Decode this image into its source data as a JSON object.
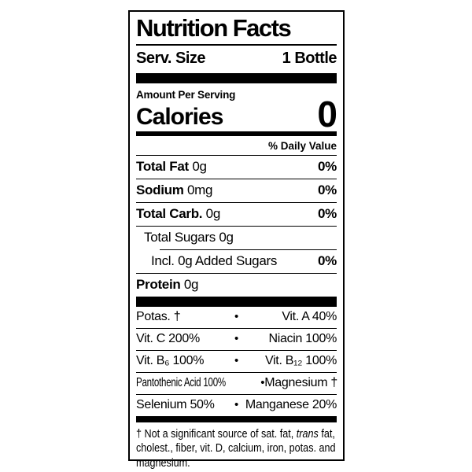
{
  "label": {
    "title": "Nutrition Facts",
    "serving": {
      "label": "Serv. Size",
      "value": "1 Bottle"
    },
    "amount_per_serving": "Amount Per Serving",
    "calories": {
      "label": "Calories",
      "value": "0"
    },
    "daily_value_header": "% Daily Value",
    "nutrient_rows": [
      {
        "name": "Total Fat",
        "amount": "0g",
        "dv": "0%"
      },
      {
        "name": "Sodium",
        "amount": "0mg",
        "dv": "0%"
      },
      {
        "name": "Total Carb.",
        "amount": "0g",
        "dv": "0%"
      },
      {
        "name": "Total Sugars",
        "amount": "0g",
        "dv": ""
      },
      {
        "name": "Incl. 0g Added Sugars",
        "amount": "",
        "dv": "0%"
      },
      {
        "name": "Protein",
        "amount": "0g",
        "dv": ""
      }
    ],
    "bullet": "•",
    "micronutrients": [
      {
        "left": "Potas. †",
        "right": "Vit. A 40%"
      },
      {
        "left": "Vit. C 200%",
        "right": "Niacin 100%"
      },
      {
        "left": "Vit. B₆ 100%",
        "right": "Vit. B₁₂ 100%"
      },
      {
        "left": "Pantothenic Acid 100%",
        "right": "Magnesium †"
      },
      {
        "left": "Selenium 50%",
        "right": "Manganese 20%"
      }
    ],
    "footnote": {
      "line1_pre": "† Not a significant source of sat. fat, ",
      "line1_italic": "trans",
      "line1_post": " fat,",
      "line2": "cholest., fiber, vit. D, calcium, iron, potas. and",
      "line3": "magnesium."
    }
  },
  "colors": {
    "ink": "#000000",
    "background": "#ffffff"
  }
}
